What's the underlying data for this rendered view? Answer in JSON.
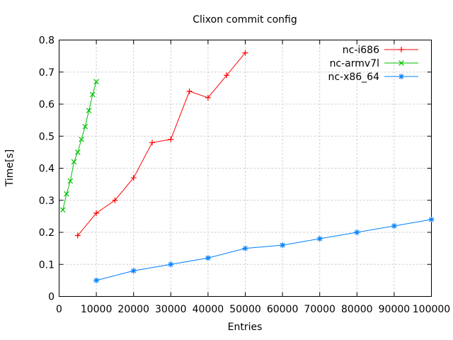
{
  "chart_data": {
    "type": "line",
    "title": "Clixon commit config",
    "xlabel": "Entries",
    "ylabel": "Time[s]",
    "xlim": [
      0,
      100000
    ],
    "ylim": [
      0,
      0.8
    ],
    "xticks": [
      0,
      10000,
      20000,
      30000,
      40000,
      50000,
      60000,
      70000,
      80000,
      90000,
      100000
    ],
    "xtick_labels": [
      "0",
      "10000",
      "20000",
      "30000",
      "40000",
      "50000",
      "60000",
      "70000",
      "80000",
      "90000",
      "100000"
    ],
    "yticks": [
      0,
      0.1,
      0.2,
      0.3,
      0.4,
      0.5,
      0.6,
      0.7,
      0.8
    ],
    "ytick_labels": [
      "0",
      "0.1",
      "0.2",
      "0.3",
      "0.4",
      "0.5",
      "0.6",
      "0.7",
      "0.8"
    ],
    "grid": true,
    "legend_position": "inside top right",
    "colors": {
      "background": "#ffffff",
      "border": "#000000",
      "grid": "#c0c0c0",
      "text": "#000000"
    },
    "series": [
      {
        "name": "nc-i686",
        "color": "#ff0000",
        "marker": "plus",
        "x": [
          5000,
          10000,
          15000,
          20000,
          25000,
          30000,
          35000,
          40000,
          45000,
          50000
        ],
        "y": [
          0.19,
          0.26,
          0.3,
          0.37,
          0.48,
          0.49,
          0.64,
          0.62,
          0.69,
          0.76
        ]
      },
      {
        "name": "nc-armv7l",
        "color": "#00c000",
        "marker": "cross",
        "x": [
          1000,
          2000,
          3000,
          4000,
          5000,
          6000,
          7000,
          8000,
          9000,
          10000
        ],
        "y": [
          0.27,
          0.32,
          0.36,
          0.42,
          0.45,
          0.49,
          0.53,
          0.58,
          0.63,
          0.67
        ]
      },
      {
        "name": "nc-x86_64",
        "color": "#0080ff",
        "marker": "asterisk",
        "x": [
          10000,
          20000,
          30000,
          40000,
          50000,
          60000,
          70000,
          80000,
          90000,
          100000
        ],
        "y": [
          0.05,
          0.08,
          0.1,
          0.12,
          0.15,
          0.16,
          0.18,
          0.2,
          0.22,
          0.24
        ]
      }
    ]
  }
}
